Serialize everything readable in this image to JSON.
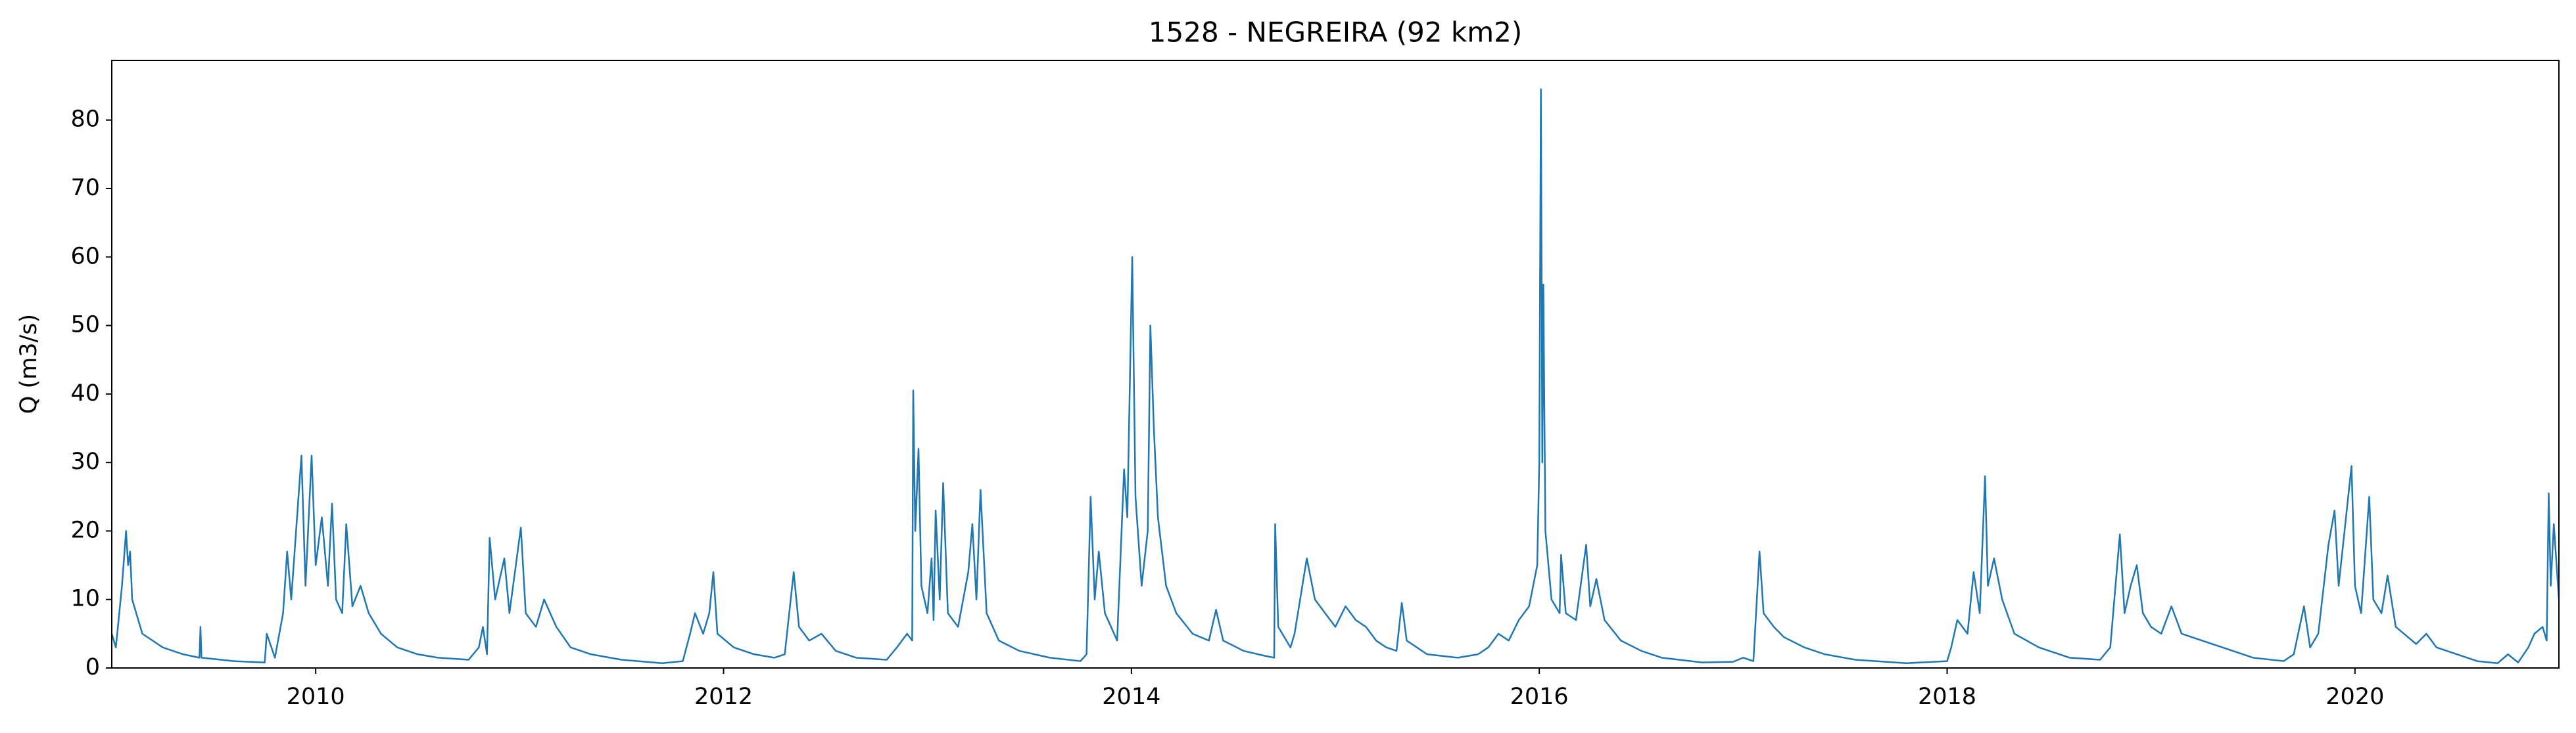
{
  "chart_data": {
    "type": "line",
    "title": "1528 - NEGREIRA (92 km2)",
    "ylabel": "Q (m3/s)",
    "color": "#1f77b4",
    "x": [
      2009.0,
      2009.02,
      2009.05,
      2009.07,
      2009.08,
      2009.09,
      2009.1,
      2009.15,
      2009.25,
      2009.35,
      2009.43,
      2009.435,
      2009.44,
      2009.6,
      2009.75,
      2009.76,
      2009.8,
      2009.84,
      2009.86,
      2009.88,
      2009.93,
      2009.95,
      2009.98,
      2010.0,
      2010.03,
      2010.06,
      2010.08,
      2010.1,
      2010.13,
      2010.15,
      2010.18,
      2010.22,
      2010.26,
      2010.32,
      2010.4,
      2010.5,
      2010.6,
      2010.75,
      2010.8,
      2010.82,
      2010.84,
      2010.853,
      2010.88,
      2010.925,
      2010.95,
      2011.006,
      2011.03,
      2011.08,
      2011.12,
      2011.18,
      2011.25,
      2011.35,
      2011.5,
      2011.7,
      2011.8,
      2011.836,
      2011.86,
      2011.9,
      2011.93,
      2011.95,
      2011.97,
      2012.05,
      2012.15,
      2012.25,
      2012.3,
      2012.344,
      2012.37,
      2012.42,
      2012.48,
      2012.55,
      2012.65,
      2012.8,
      2012.85,
      2012.9,
      2012.925,
      2012.93,
      2012.94,
      2012.956,
      2012.97,
      2013.0,
      2013.02,
      2013.03,
      2013.04,
      2013.06,
      2013.077,
      2013.1,
      2013.15,
      2013.2,
      2013.22,
      2013.24,
      2013.26,
      2013.29,
      2013.35,
      2013.45,
      2013.6,
      2013.75,
      2013.78,
      2013.8,
      2013.82,
      2013.84,
      2013.87,
      2013.9,
      2013.93,
      2013.964,
      2013.98,
      2014.004,
      2014.02,
      2014.05,
      2014.08,
      2014.093,
      2014.11,
      2014.13,
      2014.17,
      2014.22,
      2014.3,
      2014.38,
      2014.415,
      2014.45,
      2014.55,
      2014.65,
      2014.7,
      2014.705,
      2014.72,
      2014.78,
      2014.8,
      2014.86,
      2014.9,
      2014.95,
      2015.0,
      2015.05,
      2015.1,
      2015.15,
      2015.2,
      2015.25,
      2015.3,
      2015.326,
      2015.35,
      2015.45,
      2015.6,
      2015.7,
      2015.75,
      2015.8,
      2015.85,
      2015.9,
      2015.95,
      2015.99,
      2016.0,
      2016.008,
      2016.015,
      2016.02,
      2016.03,
      2016.06,
      2016.1,
      2016.107,
      2016.13,
      2016.18,
      2016.23,
      2016.25,
      2016.28,
      2016.32,
      2016.4,
      2016.5,
      2016.6,
      2016.8,
      2016.95,
      2017.0,
      2017.05,
      2017.08,
      2017.1,
      2017.15,
      2017.2,
      2017.3,
      2017.4,
      2017.55,
      2017.8,
      2018.0,
      2018.02,
      2018.05,
      2018.1,
      2018.13,
      2018.16,
      2018.186,
      2018.2,
      2018.23,
      2018.27,
      2018.33,
      2018.45,
      2018.6,
      2018.75,
      2018.8,
      2018.847,
      2018.87,
      2018.9,
      2018.93,
      2018.96,
      2019.0,
      2019.05,
      2019.1,
      2019.15,
      2019.25,
      2019.35,
      2019.5,
      2019.65,
      2019.7,
      2019.75,
      2019.78,
      2019.82,
      2019.87,
      2019.9,
      2019.92,
      2019.983,
      2020.0,
      2020.03,
      2020.07,
      2020.09,
      2020.13,
      2020.16,
      2020.2,
      2020.3,
      2020.35,
      2020.4,
      2020.5,
      2020.6,
      2020.7,
      2020.75,
      2020.8,
      2020.85,
      2020.88,
      2020.92,
      2020.94,
      2020.95,
      2020.96,
      2020.975,
      2021.0
    ],
    "values": [
      5,
      3,
      12,
      20,
      15,
      17,
      10,
      5,
      3,
      2,
      1.5,
      6,
      1.5,
      1,
      0.8,
      5,
      1.5,
      8,
      17,
      10,
      31,
      12,
      31,
      15,
      22,
      12,
      24,
      10,
      8,
      21,
      9,
      12,
      8,
      5,
      3,
      2,
      1.5,
      1.2,
      3,
      6,
      2,
      19,
      10,
      16,
      8,
      20.5,
      8,
      6,
      10,
      6,
      3,
      2,
      1.2,
      0.7,
      1,
      5,
      8,
      5,
      8,
      14,
      5,
      3,
      2,
      1.5,
      2,
      14,
      6,
      4,
      5,
      2.5,
      1.5,
      1.2,
      3,
      5,
      4,
      40.5,
      20,
      32,
      12,
      8,
      16,
      7,
      23,
      10,
      27,
      8,
      6,
      14,
      21,
      10,
      26,
      8,
      4,
      2.5,
      1.5,
      1,
      2,
      25,
      10,
      17,
      8,
      6,
      4,
      29,
      22,
      60,
      25,
      12,
      20,
      50,
      35,
      22,
      12,
      8,
      5,
      4,
      8.5,
      4,
      2.5,
      1.8,
      1.5,
      21,
      6,
      3,
      5,
      16,
      10,
      8,
      6,
      9,
      7,
      6,
      4,
      3,
      2.5,
      9.5,
      4,
      2,
      1.5,
      2,
      3,
      5,
      4,
      7,
      9,
      15,
      30,
      84.5,
      30,
      56,
      20,
      10,
      8,
      16.5,
      8,
      7,
      18,
      9,
      13,
      7,
      4,
      2.5,
      1.5,
      0.8,
      0.9,
      1.5,
      1,
      17,
      8,
      6,
      4.5,
      3,
      2,
      1.2,
      0.7,
      1,
      3,
      7,
      5,
      14,
      8,
      28,
      12,
      16,
      10,
      5,
      3,
      1.5,
      1.2,
      3,
      19.5,
      8,
      12,
      15,
      8,
      6,
      5,
      9,
      5,
      4,
      3,
      1.5,
      1,
      2,
      9,
      3,
      5,
      18,
      23,
      12,
      29.5,
      12,
      8,
      25,
      10,
      8,
      13.5,
      6,
      3.5,
      5,
      3,
      2,
      1,
      0.7,
      2,
      0.8,
      3,
      5,
      6,
      4,
      25.5,
      12,
      21,
      10
    ],
    "xlim": [
      2009.0,
      2021.0
    ],
    "xticks": [
      2010,
      2012,
      2014,
      2016,
      2018,
      2020
    ],
    "ylim": [
      0,
      88.7
    ],
    "yticks": [
      0,
      10,
      20,
      30,
      40,
      50,
      60,
      70,
      80
    ]
  }
}
